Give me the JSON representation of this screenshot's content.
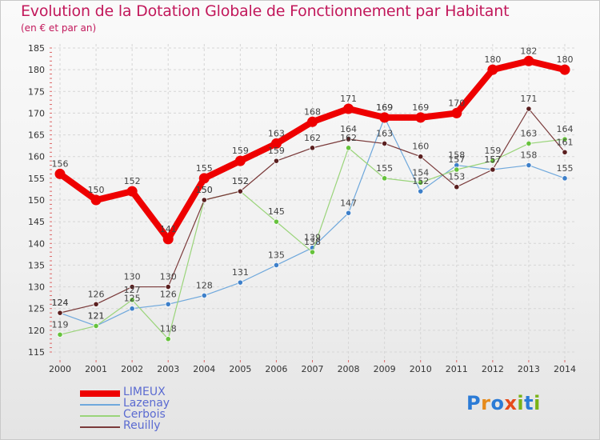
{
  "title": "Evolution de la Dotation Globale de Fonctionnement par Habitant",
  "subtitle": "(en € et par an)",
  "logo": "Proxiti",
  "chart_data": {
    "type": "line",
    "x": [
      2000,
      2001,
      2002,
      2003,
      2004,
      2005,
      2006,
      2007,
      2008,
      2009,
      2010,
      2011,
      2012,
      2013,
      2014
    ],
    "ylim": [
      115,
      185
    ],
    "yticks": [
      115,
      120,
      125,
      130,
      135,
      140,
      145,
      150,
      155,
      160,
      165,
      170,
      175,
      180,
      185
    ],
    "grid": true,
    "series": [
      {
        "name": "Lazenay",
        "color": "#6fa8dc",
        "marker": "#3d7fc9",
        "values": [
          124,
          121,
          125,
          126,
          128,
          131,
          135,
          139,
          147,
          169,
          152,
          158,
          157,
          158,
          155
        ]
      },
      {
        "name": "Cerbois",
        "color": "#9ad47a",
        "marker": "#66c23c",
        "values": [
          119,
          121,
          127,
          118,
          150,
          152,
          145,
          138,
          162,
          155,
          154,
          157,
          159,
          163,
          164
        ]
      },
      {
        "name": "Reuilly",
        "color": "#7a3a3a",
        "marker": "#5a1f1f",
        "values": [
          124,
          126,
          130,
          130,
          150,
          152,
          159,
          162,
          164,
          163,
          160,
          153,
          157,
          171,
          161
        ]
      },
      {
        "name": "LIMEUX",
        "color": "#ee0000",
        "marker": "#ee0000",
        "values": [
          156,
          150,
          152,
          141,
          155,
          159,
          163,
          168,
          171,
          169,
          169,
          170,
          180,
          182,
          180
        ]
      }
    ]
  }
}
